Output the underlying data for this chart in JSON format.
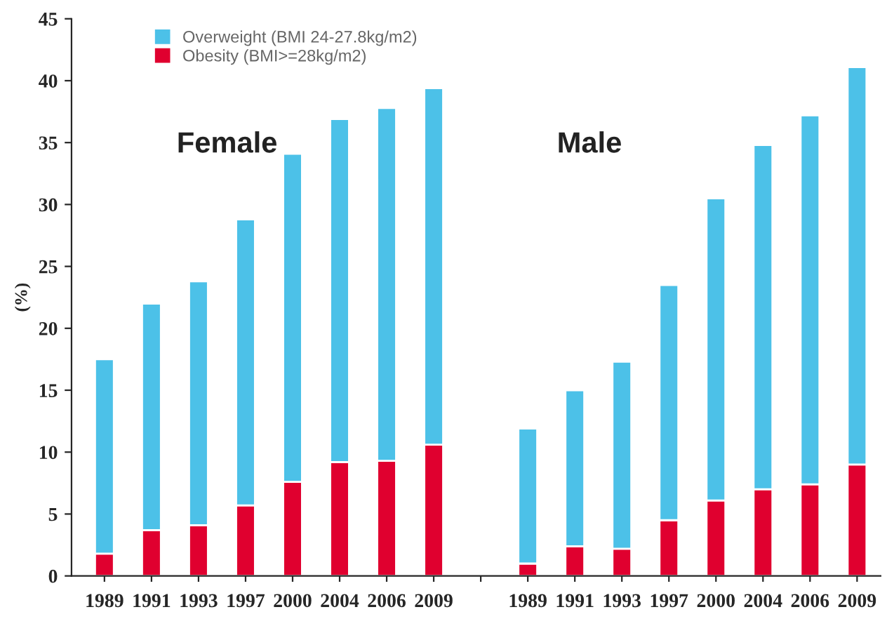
{
  "chart_data": {
    "type": "bar",
    "stacked": true,
    "ylabel": "(%)",
    "categories": [
      "1989",
      "1991",
      "1993",
      "1997",
      "2000",
      "2004",
      "2006",
      "2009",
      null,
      "1989",
      "1991",
      "1993",
      "1997",
      "2000",
      "2004",
      "2006",
      "2009"
    ],
    "series": [
      {
        "name": "Obesity (BMI>=28kg/m2)",
        "color": "#e0002f",
        "values": [
          1.8,
          3.7,
          4.1,
          5.7,
          7.6,
          9.2,
          9.3,
          10.6,
          null,
          1.0,
          2.4,
          2.2,
          4.5,
          6.1,
          7.0,
          7.4,
          9.0
        ]
      },
      {
        "name": "Overweight (BMI 24-27.8kg/m2)",
        "color": "#4cc1e8",
        "values": [
          15.7,
          18.3,
          19.7,
          23.1,
          26.5,
          27.7,
          28.5,
          28.8,
          null,
          10.9,
          12.6,
          15.1,
          19.0,
          24.4,
          27.8,
          29.8,
          32.1
        ]
      }
    ],
    "ylim": [
      0,
      45
    ],
    "yticks": [
      0,
      5,
      10,
      15,
      20,
      25,
      30,
      35,
      40,
      45
    ],
    "annotations": [
      "Female",
      "Male"
    ],
    "legend": "top left",
    "grid": false
  }
}
